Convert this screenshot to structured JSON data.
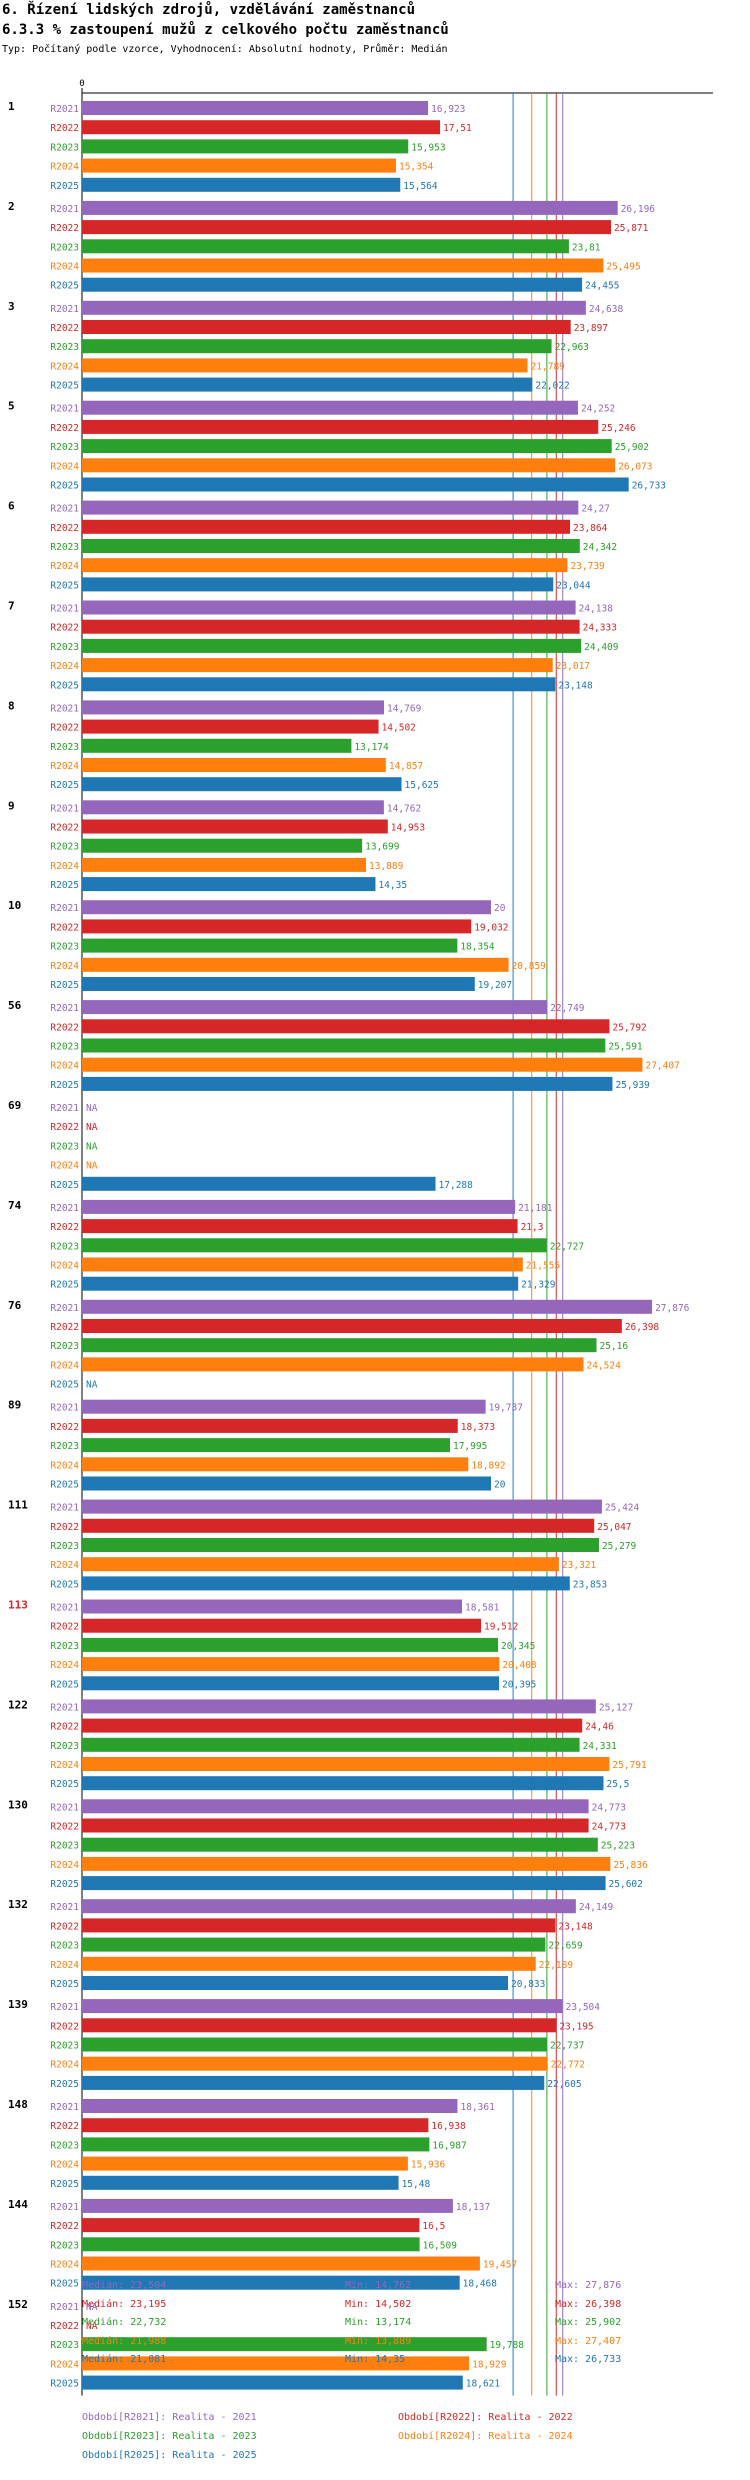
{
  "header": {
    "title_line1": "6. Řízení lidských zdrojů, vzdělávání zaměstnanců",
    "title_line2": "6.3.3 % zastoupení mužů z celkového počtu zaměstnanců",
    "subtitle": "Typ: Počítaný podle vzorce, Vyhodnocení: Absolutní hodnoty, Průměr: Medián"
  },
  "chart_data": {
    "type": "bar",
    "orientation": "horizontal",
    "axis_zero_label": "0",
    "xlim": [
      0,
      30
    ],
    "na_label": "NA",
    "series_labels": [
      "R2021",
      "R2022",
      "R2023",
      "R2024",
      "R2025"
    ],
    "series_colors": [
      "#9467bd",
      "#d62728",
      "#2ca02c",
      "#ff7f0e",
      "#1f77b4"
    ],
    "highlight_color": "#d62728",
    "groups": [
      {
        "label": "1",
        "highlight": false,
        "values": [
          16.923,
          17.51,
          15.953,
          15.354,
          15.564
        ],
        "labels": [
          "16,923",
          "17,51",
          "15,953",
          "15,354",
          "15,564"
        ]
      },
      {
        "label": "2",
        "highlight": false,
        "values": [
          26.196,
          25.871,
          23.81,
          25.495,
          24.455
        ],
        "labels": [
          "26,196",
          "25,871",
          "23,81",
          "25,495",
          "24,455"
        ]
      },
      {
        "label": "3",
        "highlight": false,
        "values": [
          24.638,
          23.897,
          22.963,
          21.789,
          22.022
        ],
        "labels": [
          "24,638",
          "23,897",
          "22,963",
          "21,789",
          "22,022"
        ]
      },
      {
        "label": "5",
        "highlight": false,
        "values": [
          24.252,
          25.246,
          25.902,
          26.073,
          26.733
        ],
        "labels": [
          "24,252",
          "25,246",
          "25,902",
          "26,073",
          "26,733"
        ]
      },
      {
        "label": "6",
        "highlight": false,
        "values": [
          24.27,
          23.864,
          24.342,
          23.739,
          23.044
        ],
        "labels": [
          "24,27",
          "23,864",
          "24,342",
          "23,739",
          "23,044"
        ]
      },
      {
        "label": "7",
        "highlight": false,
        "values": [
          24.138,
          24.333,
          24.409,
          23.017,
          23.148
        ],
        "labels": [
          "24,138",
          "24,333",
          "24,409",
          "23,017",
          "23,148"
        ]
      },
      {
        "label": "8",
        "highlight": false,
        "values": [
          14.769,
          14.502,
          13.174,
          14.857,
          15.625
        ],
        "labels": [
          "14,769",
          "14,502",
          "13,174",
          "14,857",
          "15,625"
        ]
      },
      {
        "label": "9",
        "highlight": false,
        "values": [
          14.762,
          14.953,
          13.699,
          13.889,
          14.35
        ],
        "labels": [
          "14,762",
          "14,953",
          "13,699",
          "13,889",
          "14,35"
        ]
      },
      {
        "label": "10",
        "highlight": false,
        "values": [
          20,
          19.032,
          18.354,
          20.859,
          19.207
        ],
        "labels": [
          "20",
          "19,032",
          "18,354",
          "20,859",
          "19,207"
        ]
      },
      {
        "label": "56",
        "highlight": false,
        "values": [
          22.749,
          25.792,
          25.591,
          27.407,
          25.939
        ],
        "labels": [
          "22,749",
          "25,792",
          "25,591",
          "27,407",
          "25,939"
        ]
      },
      {
        "label": "69",
        "highlight": false,
        "values": [
          null,
          null,
          null,
          null,
          17.288
        ],
        "labels": [
          "NA",
          "NA",
          "NA",
          "NA",
          "17,288"
        ]
      },
      {
        "label": "74",
        "highlight": false,
        "values": [
          21.181,
          21.3,
          22.727,
          21.555,
          21.329
        ],
        "labels": [
          "21,181",
          "21,3",
          "22,727",
          "21,555",
          "21,329"
        ]
      },
      {
        "label": "76",
        "highlight": false,
        "values": [
          27.876,
          26.398,
          25.16,
          24.524,
          null
        ],
        "labels": [
          "27,876",
          "26,398",
          "25,16",
          "24,524",
          "NA"
        ]
      },
      {
        "label": "89",
        "highlight": false,
        "values": [
          19.737,
          18.373,
          17.995,
          18.892,
          20
        ],
        "labels": [
          "19,737",
          "18,373",
          "17,995",
          "18,892",
          "20"
        ]
      },
      {
        "label": "111",
        "highlight": false,
        "values": [
          25.424,
          25.047,
          25.279,
          23.321,
          23.853
        ],
        "labels": [
          "25,424",
          "25,047",
          "25,279",
          "23,321",
          "23,853"
        ]
      },
      {
        "label": "113",
        "highlight": true,
        "values": [
          18.581,
          19.512,
          20.345,
          20.408,
          20.395
        ],
        "labels": [
          "18,581",
          "19,512",
          "20,345",
          "20,408",
          "20,395"
        ]
      },
      {
        "label": "122",
        "highlight": false,
        "values": [
          25.127,
          24.46,
          24.331,
          25.791,
          25.5
        ],
        "labels": [
          "25,127",
          "24,46",
          "24,331",
          "25,791",
          "25,5"
        ]
      },
      {
        "label": "130",
        "highlight": false,
        "values": [
          24.773,
          24.773,
          25.223,
          25.836,
          25.602
        ],
        "labels": [
          "24,773",
          "24,773",
          "25,223",
          "25,836",
          "25,602"
        ]
      },
      {
        "label": "132",
        "highlight": false,
        "values": [
          24.149,
          23.148,
          22.659,
          22.189,
          20.833
        ],
        "labels": [
          "24,149",
          "23,148",
          "22,659",
          "22,189",
          "20,833"
        ]
      },
      {
        "label": "139",
        "highlight": false,
        "values": [
          23.504,
          23.195,
          22.737,
          22.772,
          22.605
        ],
        "labels": [
          "23,504",
          "23,195",
          "22,737",
          "22,772",
          "22,605"
        ]
      },
      {
        "label": "148",
        "highlight": false,
        "values": [
          18.361,
          16.938,
          16.987,
          15.936,
          15.48
        ],
        "labels": [
          "18,361",
          "16,938",
          "16,987",
          "15,936",
          "15,48"
        ]
      },
      {
        "label": "144",
        "highlight": false,
        "values": [
          18.137,
          16.5,
          16.509,
          19.457,
          18.468
        ],
        "labels": [
          "18,137",
          "16,5",
          "16,509",
          "19,457",
          "18,468"
        ]
      },
      {
        "label": "152",
        "highlight": false,
        "values": [
          null,
          null,
          19.788,
          18.929,
          18.621
        ],
        "labels": [
          "NA",
          "NA",
          "19,788",
          "18,929",
          "18,621"
        ]
      }
    ],
    "medians": [
      23.504,
      23.195,
      22.732,
      21.988,
      21.081
    ]
  },
  "legend": {
    "items": [
      "Období[R2021]: Realita - 2021",
      "Období[R2022]: Realita - 2022",
      "Období[R2023]: Realita - 2023",
      "Období[R2024]: Realita - 2024",
      "Období[R2025]: Realita - 2025"
    ]
  },
  "stats": [
    {
      "median": "Medián: 23,504",
      "min": "Min: 14,762",
      "max": "Max: 27,876"
    },
    {
      "median": "Medián: 23,195",
      "min": "Min: 14,502",
      "max": "Max: 26,398"
    },
    {
      "median": "Medián: 22,732",
      "min": "Min: 13,174",
      "max": "Max: 25,902"
    },
    {
      "median": "Medián: 21,988",
      "min": "Min: 13,889",
      "max": "Max: 27,407"
    },
    {
      "median": "Medián: 21,081",
      "min": "Min: 14,35",
      "max": "Max: 26,733"
    }
  ]
}
